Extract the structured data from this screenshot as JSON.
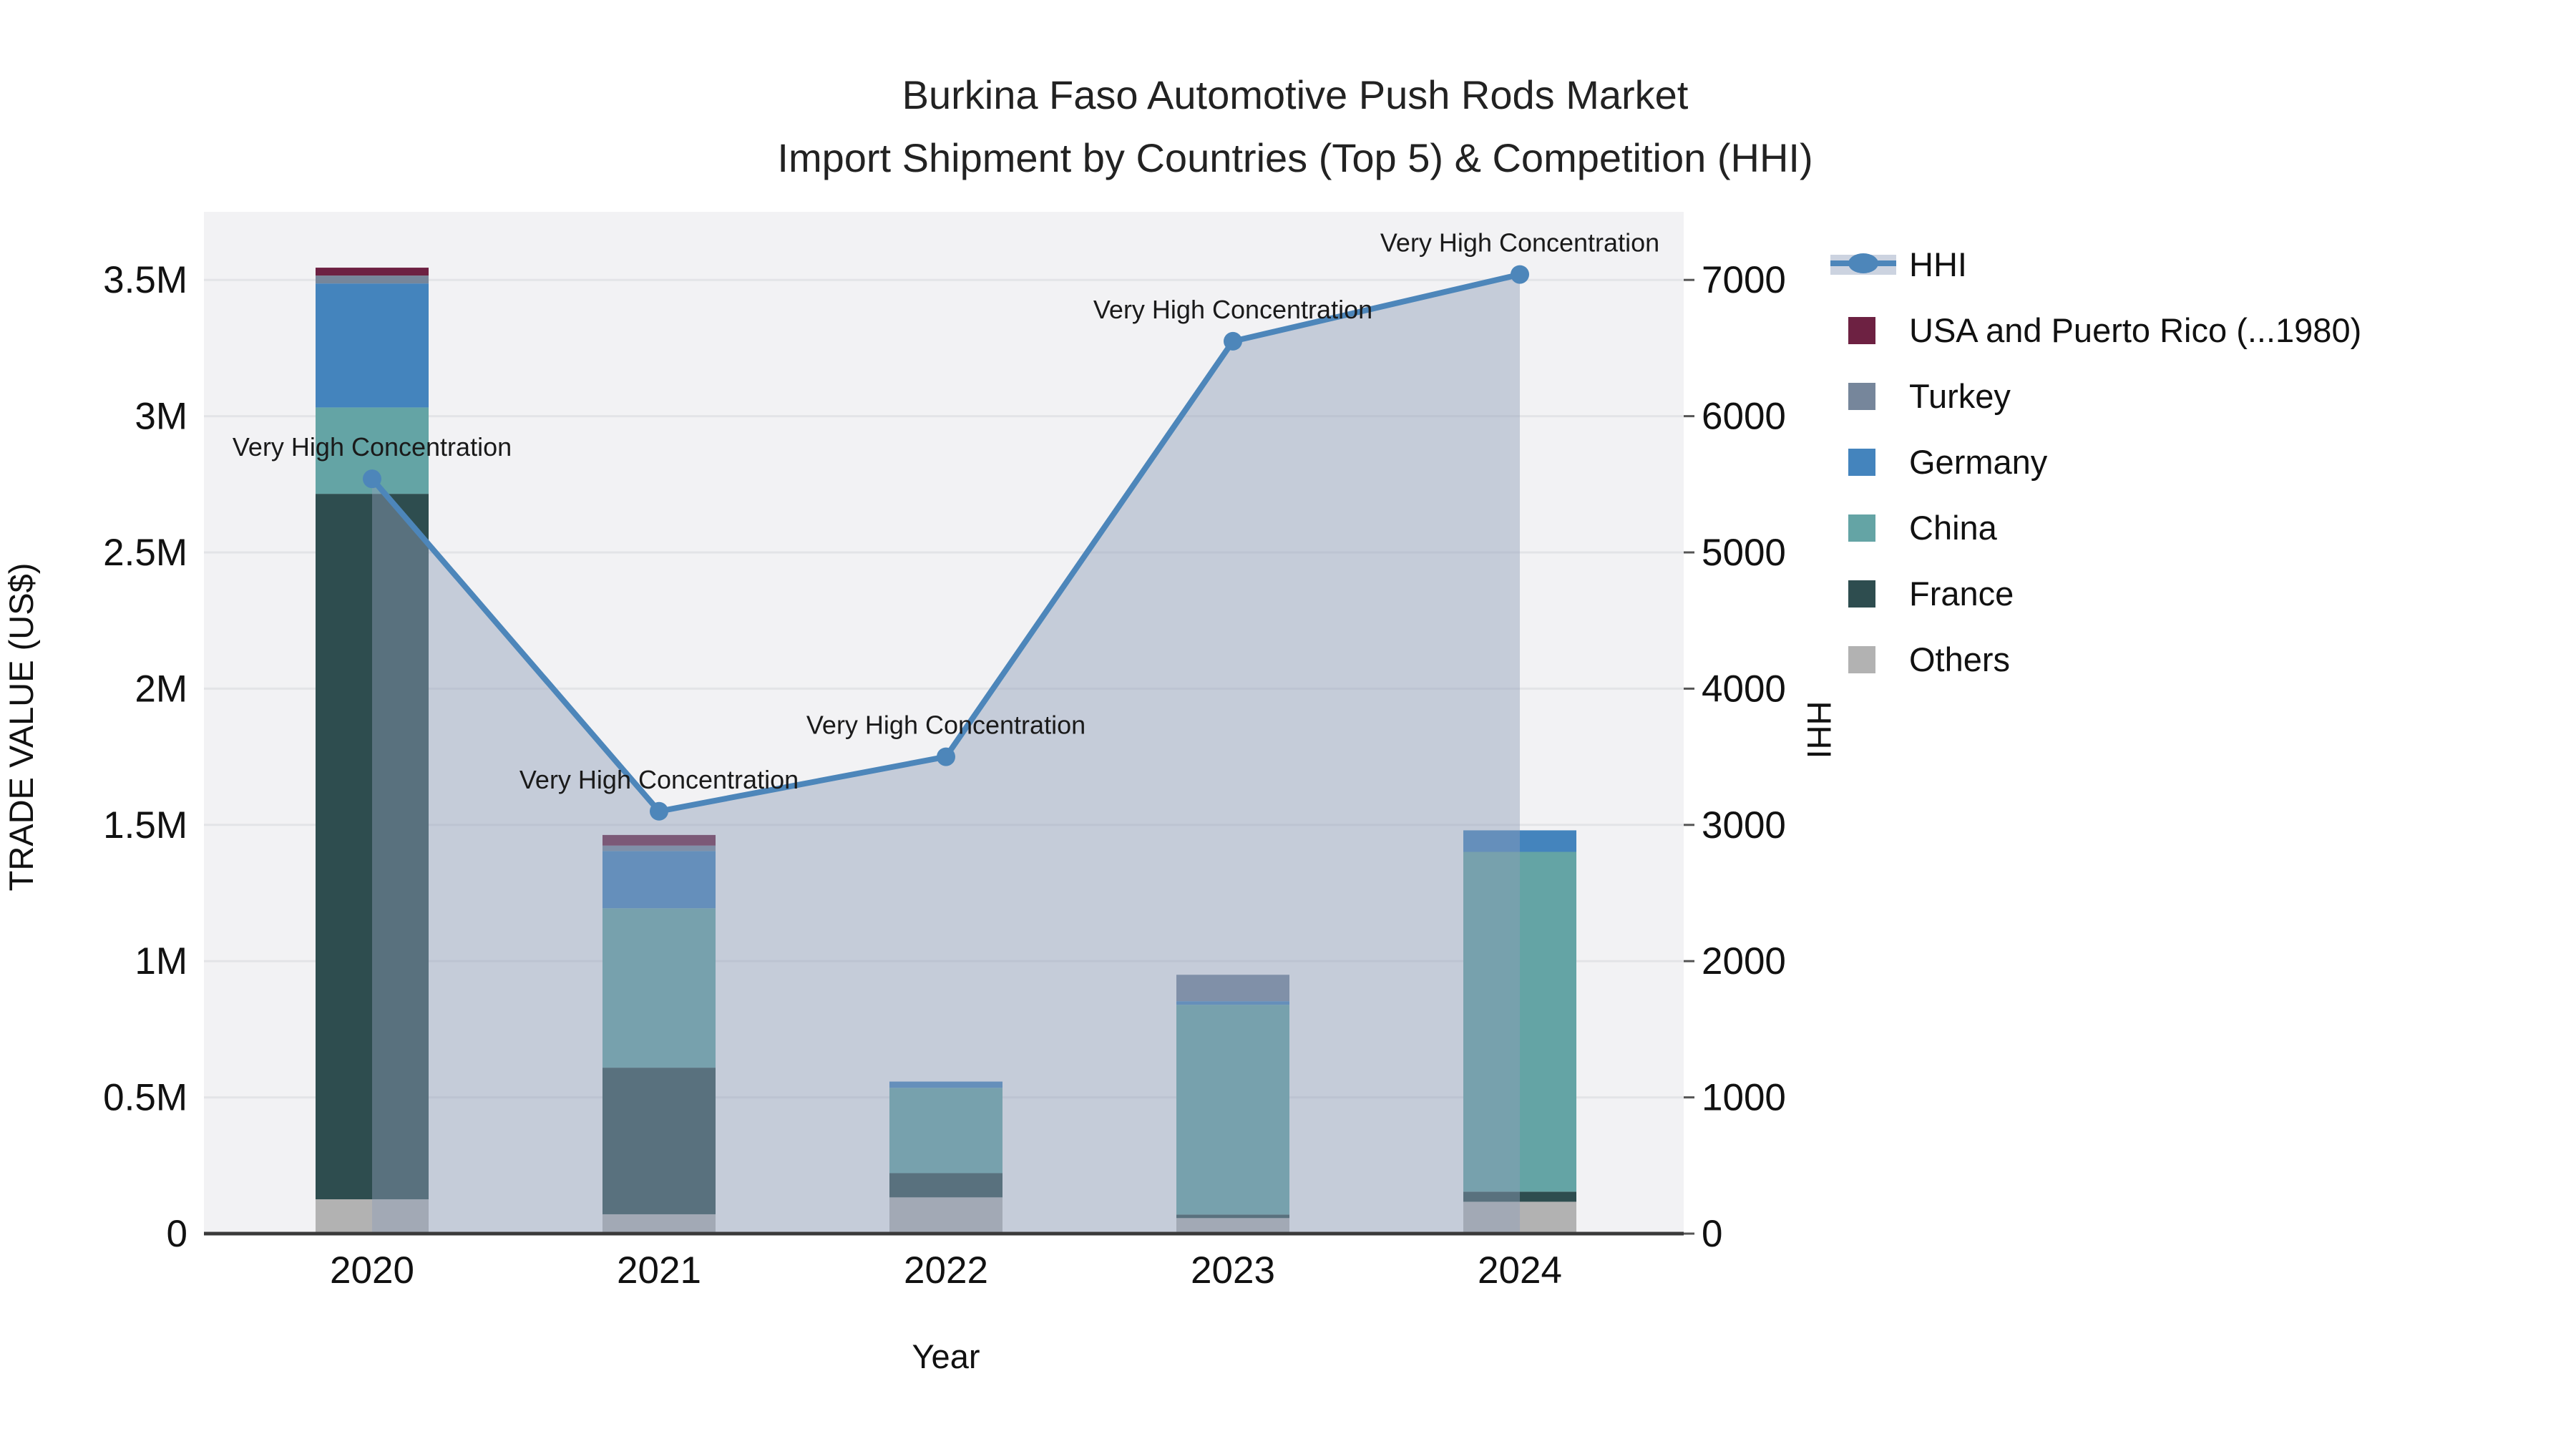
{
  "title": {
    "line1": "Burkina Faso Automotive Push Rods Market",
    "line2": "Import Shipment by Countries (Top 5) & Competition (HHI)"
  },
  "axes": {
    "y_left": {
      "title": "TRADE VALUE (US$)",
      "ticks": [
        {
          "label": "0",
          "value": 0
        },
        {
          "label": "0.5M",
          "value": 500000
        },
        {
          "label": "1M",
          "value": 1000000
        },
        {
          "label": "1.5M",
          "value": 1500000
        },
        {
          "label": "2M",
          "value": 2000000
        },
        {
          "label": "2.5M",
          "value": 2500000
        },
        {
          "label": "3M",
          "value": 3000000
        },
        {
          "label": "3.5M",
          "value": 3500000
        }
      ]
    },
    "y_right": {
      "title": "HHI",
      "ticks": [
        {
          "label": "0",
          "value": 0
        },
        {
          "label": "1000",
          "value": 1000
        },
        {
          "label": "2000",
          "value": 2000
        },
        {
          "label": "3000",
          "value": 3000
        },
        {
          "label": "4000",
          "value": 4000
        },
        {
          "label": "5000",
          "value": 5000
        },
        {
          "label": "6000",
          "value": 6000
        },
        {
          "label": "7000",
          "value": 7000
        }
      ]
    },
    "x": {
      "title": "Year",
      "categories": [
        "2020",
        "2021",
        "2022",
        "2023",
        "2024"
      ]
    }
  },
  "legend": {
    "items": [
      {
        "label": "HHI",
        "swatch": "line",
        "color": "#4d86ba",
        "band_color": "#ccd3e0"
      },
      {
        "label": "USA and Puerto Rico (...1980)",
        "swatch": "square",
        "color": "#6d2142"
      },
      {
        "label": "Turkey",
        "swatch": "square",
        "color": "#76869b"
      },
      {
        "label": "Germany",
        "swatch": "square",
        "color": "#4484bd"
      },
      {
        "label": "China",
        "swatch": "square",
        "color": "#64a4a5"
      },
      {
        "label": "France",
        "swatch": "square",
        "color": "#2e4d4f"
      },
      {
        "label": "Others",
        "swatch": "square",
        "color": "#b2b2b2"
      }
    ]
  },
  "chart_data": {
    "type": "bar",
    "subtype": "stacked bars with overlaid HHI line and area fill",
    "categories": [
      "2020",
      "2021",
      "2022",
      "2023",
      "2024"
    ],
    "bar_value_unit": "US$",
    "series": [
      {
        "name": "Others",
        "color": "#b2b2b2",
        "values": [
          126000,
          71000,
          133000,
          57000,
          117000
        ]
      },
      {
        "name": "France",
        "color": "#2e4d4f",
        "values": [
          2589000,
          538000,
          89000,
          13000,
          37000
        ]
      },
      {
        "name": "China",
        "color": "#64a4a5",
        "values": [
          317000,
          585000,
          313000,
          770000,
          1247000
        ]
      },
      {
        "name": "Germany",
        "color": "#4484bd",
        "values": [
          455000,
          210000,
          23000,
          13000,
          79000
        ]
      },
      {
        "name": "Turkey",
        "color": "#76869b",
        "values": [
          29000,
          20000,
          0,
          97000,
          0
        ]
      },
      {
        "name": "USA and Puerto Rico (...1980)",
        "color": "#6d2142",
        "values": [
          29000,
          39000,
          0,
          0,
          0
        ]
      }
    ],
    "bar_totals": [
      3545000,
      1463000,
      558000,
      950000,
      1480000
    ],
    "line": {
      "name": "HHI",
      "color": "#4d86ba",
      "area_fill_color": "rgba(141,157,184,0.45)",
      "values": [
        5540,
        3100,
        3500,
        6550,
        7040
      ]
    },
    "annotations": [
      {
        "x": "2020",
        "text": "Very High Concentration"
      },
      {
        "x": "2021",
        "text": "Very High Concentration"
      },
      {
        "x": "2022",
        "text": "Very High Concentration"
      },
      {
        "x": "2023",
        "text": "Very High Concentration"
      },
      {
        "x": "2024",
        "text": "Very High Concentration"
      }
    ],
    "ylim_left": [
      0,
      3750000
    ],
    "ylim_right": [
      0,
      7500
    ],
    "grid": true,
    "legend_position": "right",
    "plot_background": "#f2f2f4"
  }
}
